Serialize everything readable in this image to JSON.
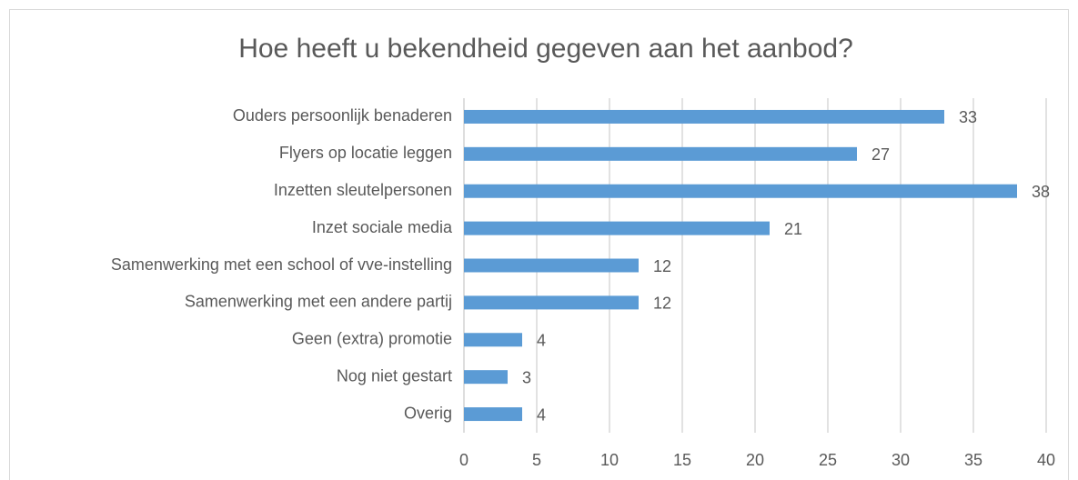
{
  "chart_data": {
    "type": "bar",
    "orientation": "horizontal",
    "title": "Hoe heeft u bekendheid gegeven aan het aanbod?",
    "categories": [
      "Ouders persoonlijk benaderen",
      "Flyers op locatie leggen",
      "Inzetten sleutelpersonen",
      "Inzet sociale media",
      "Samenwerking met een school of vve-instelling",
      "Samenwerking met een andere partij",
      "Geen (extra) promotie",
      "Nog niet gestart",
      "Overig"
    ],
    "values": [
      33,
      27,
      38,
      21,
      12,
      12,
      4,
      3,
      4
    ],
    "color": "#5b9bd5",
    "xlim": [
      0,
      40
    ],
    "xticks": [
      0,
      5,
      10,
      15,
      20,
      25,
      30,
      35,
      40
    ],
    "grid": true
  }
}
